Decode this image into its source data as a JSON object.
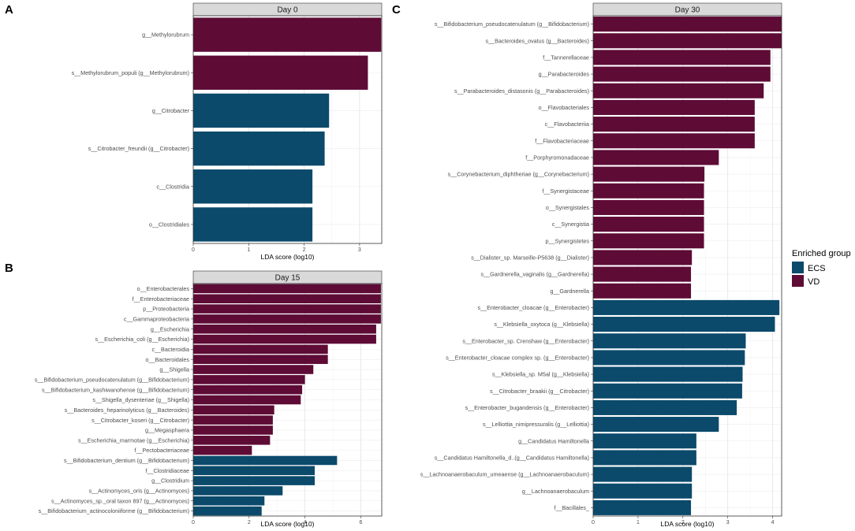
{
  "colors": {
    "ECS": "#0B4A6B",
    "VD": "#5E0B36"
  },
  "legend": {
    "title": "Enriched group",
    "items": [
      "ECS",
      "VD"
    ]
  },
  "chart_data": [
    {
      "type": "bar",
      "orientation": "horizontal",
      "panel": "A",
      "title": "Day 0",
      "xlabel": "LDA score (log10)",
      "xlim": [
        0,
        3.4
      ],
      "xticks": [
        0,
        1,
        2,
        3
      ],
      "categories": [
        "g__Methylorubrum",
        "s__Methylorubrum_populi (g__Methylorubrum)",
        "g__Citrobacter",
        "s__Citrobacter_freundii (g__Citrobacter)",
        "c__Clostridia",
        "o__Clostridiales"
      ],
      "values": [
        3.39,
        3.15,
        2.45,
        2.37,
        2.15,
        2.15
      ],
      "groups": [
        "VD",
        "VD",
        "ECS",
        "ECS",
        "ECS",
        "ECS"
      ]
    },
    {
      "type": "bar",
      "orientation": "horizontal",
      "panel": "B",
      "title": "Day 15",
      "xlabel": "LDA score (log10)",
      "xlim": [
        0,
        6.75
      ],
      "xticks": [
        0,
        2,
        4,
        6
      ],
      "categories": [
        "o__Enterobacterales",
        "f__Enterobacteriaceae",
        "p__Proteobacteria",
        "c__Gammaproteobacteria",
        "g__Escherichia",
        "s__Escherichia_coli (g__Escherichia)",
        "c__Bacteroidia",
        "o__Bacteroidales",
        "g__Shigella",
        "s__Bifidobacterium_pseudocatenulatum (g__Bifidobacterium)",
        "s__Bifidobacterium_kashiwanohense (g__Bifidobacterium)",
        "s__Shigella_dysenteriae (g__Shigella)",
        "s__Bacteroides_heparinolyticus (g__Bacteroides)",
        "s__Citrobacter_koseri (g__Citrobacter)",
        "g__Megasphaera",
        "s__Escherichia_marmotae (g__Escherichia)",
        "f__Pectobacteriaceae",
        "s__Bifidobacterium_dentium (g__Bifidobacterium)",
        "f__Clostridiaceae",
        "g__Clostridium",
        "s__Actinomyces_oris (g__Actinomyces)",
        "s__Actinomyces_sp._oral taxon 897 (g__Actinomyces)",
        "s__Bifidobacterium_actinocoloniiforme (g__Bifidobacterium)"
      ],
      "values": [
        6.72,
        6.72,
        6.72,
        6.72,
        6.55,
        6.55,
        4.82,
        4.82,
        4.3,
        4.0,
        3.9,
        3.85,
        2.9,
        2.85,
        2.85,
        2.75,
        2.1,
        5.15,
        4.35,
        4.35,
        3.2,
        2.55,
        2.45
      ],
      "groups": [
        "VD",
        "VD",
        "VD",
        "VD",
        "VD",
        "VD",
        "VD",
        "VD",
        "VD",
        "VD",
        "VD",
        "VD",
        "VD",
        "VD",
        "VD",
        "VD",
        "VD",
        "ECS",
        "ECS",
        "ECS",
        "ECS",
        "ECS",
        "ECS"
      ]
    },
    {
      "type": "bar",
      "orientation": "horizontal",
      "panel": "C",
      "title": "Day 30",
      "xlabel": "LDA score (log10)",
      "xlim": [
        0,
        4.2
      ],
      "xticks": [
        0,
        1,
        2,
        3,
        4
      ],
      "categories": [
        "s__Bifidobacterium_pseudocatenulatum (g__Bifidobacterium)",
        "s__Bacteroides_ovatus (g__Bacteroides)",
        "f__Tannerellaceae",
        "g__Parabacteroides",
        "s__Parabacteroides_distasonis (g__Parabacteroides)",
        "o__Flavobacteriales",
        "c__Flavobacteriia",
        "f__Flavobacteriaceae",
        "f__Porphyromonadaceae",
        "s__Corynebacterium_diphtheriae (g__Corynebacterium)",
        "f__Synergistaceae",
        "o__Synergistales",
        "c__Synergistia",
        "p__Synergistetes",
        "s__Dialister_sp. Marseille-P5638 (g__Dialister)",
        "s__Gardnerella_vaginalis (g__Gardnerella)",
        "g__Gardnerella",
        "s__Enterobacter_cloacae (g__Enterobacter)",
        "s__Klebsiella_oxytoca (g__Klebsiella)",
        "s__Enterobacter_sp. Crenshaw (g__Enterobacter)",
        "s__Enterobacter_cloacae complex sp. (g__Enterobacter)",
        "s__Klebsiella_sp. M5al (g__Klebsiella)",
        "s__Citrobacter_braakii (g__Citrobacter)",
        "s__Enterobacter_bugandensis (g__Enterobacter)",
        "s__Lelliottia_nimipressuralis (g__Lelliottia)",
        "g__Candidatus Hamiltonella",
        "s__Candidatus Hamiltonella_d..(g__Candidatus Hamiltonella)",
        "s__Lachnoanaerobaculum_umeaense (g__Lachnoanaerobaculum)",
        "g__Lachnoanaerobaculum",
        "f__Bacillales_"
      ],
      "values": [
        4.2,
        4.2,
        3.95,
        3.95,
        3.8,
        3.6,
        3.6,
        3.6,
        2.8,
        2.48,
        2.47,
        2.47,
        2.47,
        2.47,
        2.2,
        2.18,
        2.18,
        4.15,
        4.05,
        3.4,
        3.38,
        3.33,
        3.32,
        3.2,
        2.8,
        2.3,
        2.3,
        2.2,
        2.2,
        2.18
      ],
      "groups": [
        "VD",
        "VD",
        "VD",
        "VD",
        "VD",
        "VD",
        "VD",
        "VD",
        "VD",
        "VD",
        "VD",
        "VD",
        "VD",
        "VD",
        "VD",
        "VD",
        "VD",
        "ECS",
        "ECS",
        "ECS",
        "ECS",
        "ECS",
        "ECS",
        "ECS",
        "ECS",
        "ECS",
        "ECS",
        "ECS",
        "ECS",
        "ECS"
      ]
    }
  ]
}
